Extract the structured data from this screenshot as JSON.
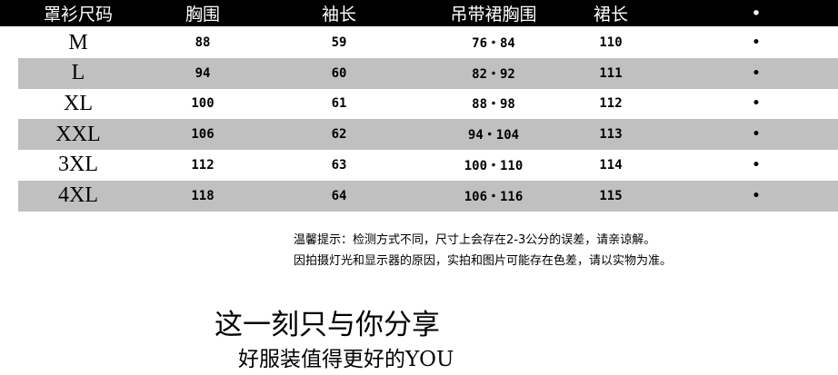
{
  "table": {
    "headers": [
      "罩衫尺码",
      "胸围",
      "袖长",
      "吊带裙胸围",
      "裙长",
      "•"
    ],
    "rows": [
      [
        "M",
        "88",
        "59",
        "76・84",
        "110",
        "•"
      ],
      [
        "L",
        "94",
        "60",
        "82・92",
        "111",
        "•"
      ],
      [
        "XL",
        "100",
        "61",
        "88・98",
        "112",
        "•"
      ],
      [
        "XXL",
        "106",
        "62",
        "94・104",
        "113",
        "•"
      ],
      [
        "3XL",
        "112",
        "63",
        "100・110",
        "114",
        "•"
      ],
      [
        "4XL",
        "118",
        "64",
        "106・116",
        "115",
        "•"
      ]
    ]
  },
  "notes": [
    "温馨提示：检测方式不同，尺寸上会存在2-3公分的误差，请亲谅解。",
    "因拍摄灯光和显示器的原因，实拍和图片可能存在色差，请以实物为准。"
  ],
  "slogan": {
    "line1": "这一刻只与你分享",
    "line2": "好服装值得更好的YOU"
  },
  "colors": {
    "header_bg": "#000000",
    "alt_row": "#c0c0c0"
  }
}
